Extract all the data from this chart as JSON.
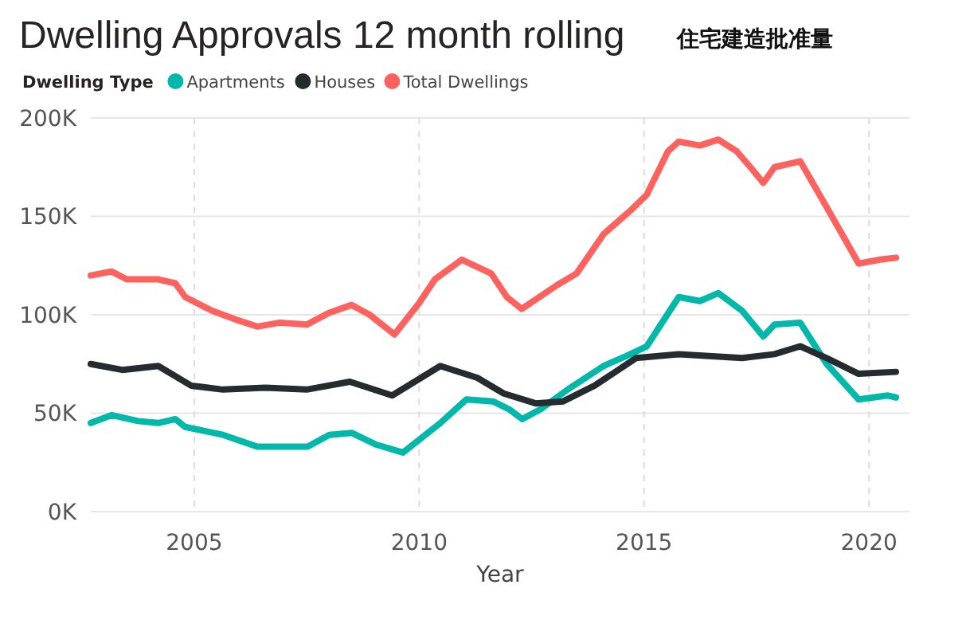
{
  "chart_data": {
    "type": "line",
    "title": "Dwelling Approvals 12 month rolling",
    "subtitle": "住宅建造批准量",
    "xlabel": "Year",
    "legend_title": "Dwelling Type",
    "legend": "top left",
    "grid": true,
    "marker": "none",
    "line_style": "solid",
    "xlim": [
      2002.7,
      2020.9
    ],
    "xticks": [
      2005,
      2010,
      2015,
      2020
    ],
    "ylim": [
      0,
      200000
    ],
    "yticks": [
      {
        "value": 0,
        "label": "0K"
      },
      {
        "value": 50000,
        "label": "50K"
      },
      {
        "value": 100000,
        "label": "100K"
      },
      {
        "value": 150000,
        "label": "150K"
      },
      {
        "value": 200000,
        "label": "200K"
      }
    ],
    "series": [
      {
        "name": "Apartments",
        "color": "#01b8aa",
        "x": [
          2002.7,
          2003.16,
          2003.75,
          2004.2,
          2004.58,
          2004.8,
          2005.64,
          2006.4,
          2007.52,
          2008.0,
          2008.5,
          2009.05,
          2009.64,
          2010.47,
          2011.05,
          2011.64,
          2012.0,
          2012.29,
          2012.7,
          2013.3,
          2014.1,
          2014.6,
          2015.06,
          2015.77,
          2016.24,
          2016.65,
          2017.18,
          2017.65,
          2017.9,
          2018.47,
          2019.06,
          2019.77,
          2020.42,
          2020.6
        ],
        "values": [
          45000,
          49000,
          46000,
          45000,
          47000,
          43000,
          39000,
          33000,
          33000,
          39000,
          40000,
          34000,
          30000,
          45000,
          57000,
          56000,
          52000,
          47000,
          52000,
          62000,
          74000,
          79000,
          84000,
          109000,
          107000,
          111000,
          102000,
          89000,
          95000,
          96000,
          75000,
          57000,
          59000,
          58000
        ]
      },
      {
        "name": "Houses",
        "color": "#252c30",
        "x": [
          2002.7,
          2003.4,
          2004.2,
          2004.93,
          2005.64,
          2006.58,
          2007.5,
          2008.46,
          2009.4,
          2010.47,
          2011.29,
          2011.88,
          2012.59,
          2013.2,
          2013.9,
          2014.82,
          2015.77,
          2017.18,
          2017.9,
          2018.47,
          2019.06,
          2019.77,
          2020.6
        ],
        "values": [
          75000,
          72000,
          74000,
          64000,
          62000,
          63000,
          62000,
          66000,
          59000,
          74000,
          68000,
          60000,
          55000,
          56000,
          64000,
          78000,
          80000,
          78000,
          80000,
          84000,
          78000,
          70000,
          71000
        ]
      },
      {
        "name": "Total Dwellings",
        "color": "#fd625e",
        "x": [
          2002.7,
          2003.16,
          2003.5,
          2004.2,
          2004.58,
          2004.8,
          2005.4,
          2006.0,
          2006.4,
          2006.9,
          2007.5,
          2008.0,
          2008.5,
          2008.9,
          2009.45,
          2010.0,
          2010.35,
          2010.95,
          2011.6,
          2011.95,
          2012.28,
          2013.06,
          2013.5,
          2014.1,
          2014.7,
          2015.06,
          2015.53,
          2015.77,
          2016.24,
          2016.65,
          2017.06,
          2017.4,
          2017.65,
          2017.9,
          2018.47,
          2018.95,
          2019.4,
          2019.77,
          2020.24,
          2020.6
        ],
        "values": [
          120000,
          122000,
          118000,
          118000,
          116000,
          109000,
          102000,
          97000,
          94000,
          96000,
          95000,
          101000,
          105000,
          100000,
          90000,
          106000,
          118000,
          128000,
          121000,
          109000,
          103000,
          115000,
          121000,
          141000,
          153000,
          161000,
          183000,
          188000,
          186000,
          189000,
          183000,
          174000,
          167000,
          175000,
          178000,
          159000,
          141000,
          126000,
          128000,
          129000
        ]
      }
    ]
  }
}
